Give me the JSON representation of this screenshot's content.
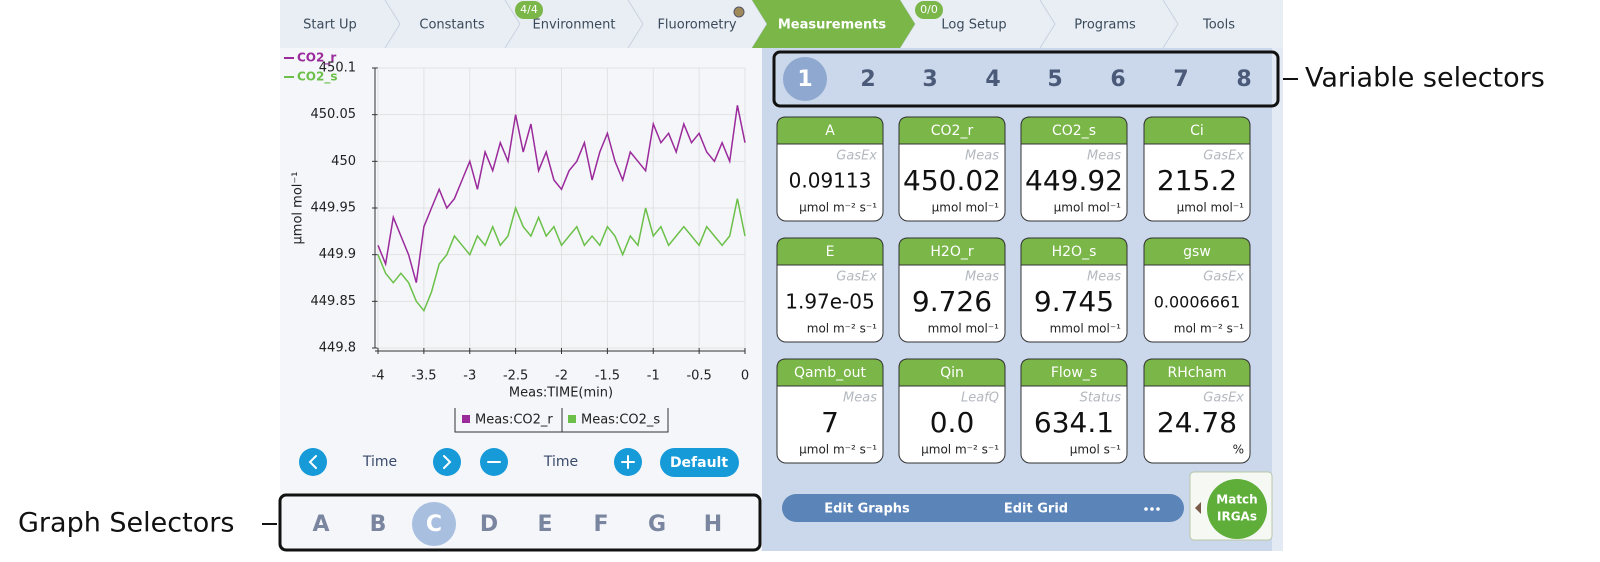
{
  "tabs": [
    {
      "label": "Start Up"
    },
    {
      "label": "Constants"
    },
    {
      "label": "Environment",
      "badge": "4/4"
    },
    {
      "label": "Fluorometry"
    },
    {
      "label": "Measurements"
    },
    {
      "label": "Log Setup",
      "badge": "0/0"
    },
    {
      "label": "Programs"
    },
    {
      "label": "Tools"
    }
  ],
  "active_tab": 4,
  "chart_data": {
    "type": "line",
    "trace_labels": [
      "CO2_r",
      "CO2_s"
    ],
    "y_label": "µmol mol⁻¹",
    "x_label": "Meas:TIME(min)",
    "x": [
      -4,
      -3.917,
      -3.833,
      -3.75,
      -3.667,
      -3.583,
      -3.5,
      -3.417,
      -3.333,
      -3.25,
      -3.167,
      -3.083,
      -3,
      -2.917,
      -2.833,
      -2.75,
      -2.667,
      -2.583,
      -2.5,
      -2.417,
      -2.333,
      -2.25,
      -2.167,
      -2.083,
      -2,
      -1.917,
      -1.833,
      -1.75,
      -1.667,
      -1.583,
      -1.5,
      -1.417,
      -1.333,
      -1.25,
      -1.167,
      -1.083,
      -1,
      -0.917,
      -0.833,
      -0.75,
      -0.667,
      -0.583,
      -0.5,
      -0.417,
      -0.333,
      -0.25,
      -0.167,
      -0.083,
      0
    ],
    "series": [
      {
        "name": "Meas:CO2_r",
        "color": "#9b2a9b",
        "values": [
          449.91,
          449.89,
          449.94,
          449.92,
          449.9,
          449.87,
          449.93,
          449.95,
          449.97,
          449.95,
          449.96,
          449.98,
          450.0,
          449.97,
          450.01,
          449.99,
          450.02,
          450.0,
          450.05,
          450.01,
          450.04,
          449.99,
          450.01,
          449.98,
          449.97,
          449.99,
          450.0,
          450.02,
          449.98,
          450.01,
          450.03,
          450.0,
          449.98,
          450.01,
          450.0,
          449.99,
          450.04,
          450.02,
          450.03,
          450.01,
          450.04,
          450.02,
          450.03,
          450.01,
          450.0,
          450.02,
          450.0,
          450.06,
          450.02
        ]
      },
      {
        "name": "Meas:CO2_s",
        "color": "#6cc04a",
        "values": [
          449.9,
          449.88,
          449.87,
          449.88,
          449.87,
          449.85,
          449.84,
          449.86,
          449.89,
          449.9,
          449.92,
          449.91,
          449.9,
          449.92,
          449.91,
          449.93,
          449.91,
          449.92,
          449.95,
          449.93,
          449.92,
          449.94,
          449.92,
          449.93,
          449.91,
          449.92,
          449.93,
          449.91,
          449.92,
          449.91,
          449.93,
          449.92,
          449.9,
          449.92,
          449.91,
          449.95,
          449.92,
          449.93,
          449.91,
          449.92,
          449.93,
          449.92,
          449.91,
          449.93,
          449.92,
          449.91,
          449.92,
          449.96,
          449.92
        ]
      }
    ],
    "xlim": [
      -4,
      0
    ],
    "xticks": [
      -4,
      -3.5,
      -3,
      -2.5,
      -2,
      -1.5,
      -1,
      -0.5,
      0
    ],
    "ylim": [
      449.8,
      450.1
    ],
    "yticks": [
      449.8,
      449.85,
      449.9,
      449.95,
      450,
      450.05,
      450.1
    ],
    "grid": true
  },
  "graph_controls": {
    "time_left": "Time",
    "time_right": "Time",
    "default": "Default"
  },
  "graph_selectors": [
    "A",
    "B",
    "C",
    "D",
    "E",
    "F",
    "G",
    "H"
  ],
  "selected_graph": 2,
  "variable_selectors": [
    "1",
    "2",
    "3",
    "4",
    "5",
    "6",
    "7",
    "8"
  ],
  "selected_variable": 0,
  "tiles": [
    {
      "name": "A",
      "source": "GasEx",
      "value": "0.09113",
      "unit": "µmol m⁻² s⁻¹"
    },
    {
      "name": "CO2_r",
      "source": "Meas",
      "value": "450.02",
      "unit": "µmol mol⁻¹"
    },
    {
      "name": "CO2_s",
      "source": "Meas",
      "value": "449.92",
      "unit": "µmol mol⁻¹"
    },
    {
      "name": "Ci",
      "source": "GasEx",
      "value": "215.2",
      "unit": "µmol mol⁻¹"
    },
    {
      "name": "E",
      "source": "GasEx",
      "value": "1.97e-05",
      "unit": "mol m⁻² s⁻¹"
    },
    {
      "name": "H2O_r",
      "source": "Meas",
      "value": "9.726",
      "unit": "mmol mol⁻¹"
    },
    {
      "name": "H2O_s",
      "source": "Meas",
      "value": "9.745",
      "unit": "mmol mol⁻¹"
    },
    {
      "name": "gsw",
      "source": "GasEx",
      "value": "0.0006661",
      "unit": "mol m⁻² s⁻¹"
    },
    {
      "name": "Qamb_out",
      "source": "Meas",
      "value": "7",
      "unit": "µmol m⁻² s⁻¹"
    },
    {
      "name": "Qin",
      "source": "LeafQ",
      "value": "0.0",
      "unit": "µmol m⁻² s⁻¹"
    },
    {
      "name": "Flow_s",
      "source": "Status",
      "value": "634.1",
      "unit": "µmol s⁻¹"
    },
    {
      "name": "RHcham",
      "source": "GasEx",
      "value": "24.78",
      "unit": "%"
    }
  ],
  "buttons": {
    "edit_graphs": "Edit Graphs",
    "edit_grid": "Edit Grid",
    "match_irgas": [
      "Match",
      "IRGAs"
    ]
  },
  "annotations": {
    "variable_selectors": "Variable selectors",
    "graph_selectors": "Graph Selectors"
  }
}
